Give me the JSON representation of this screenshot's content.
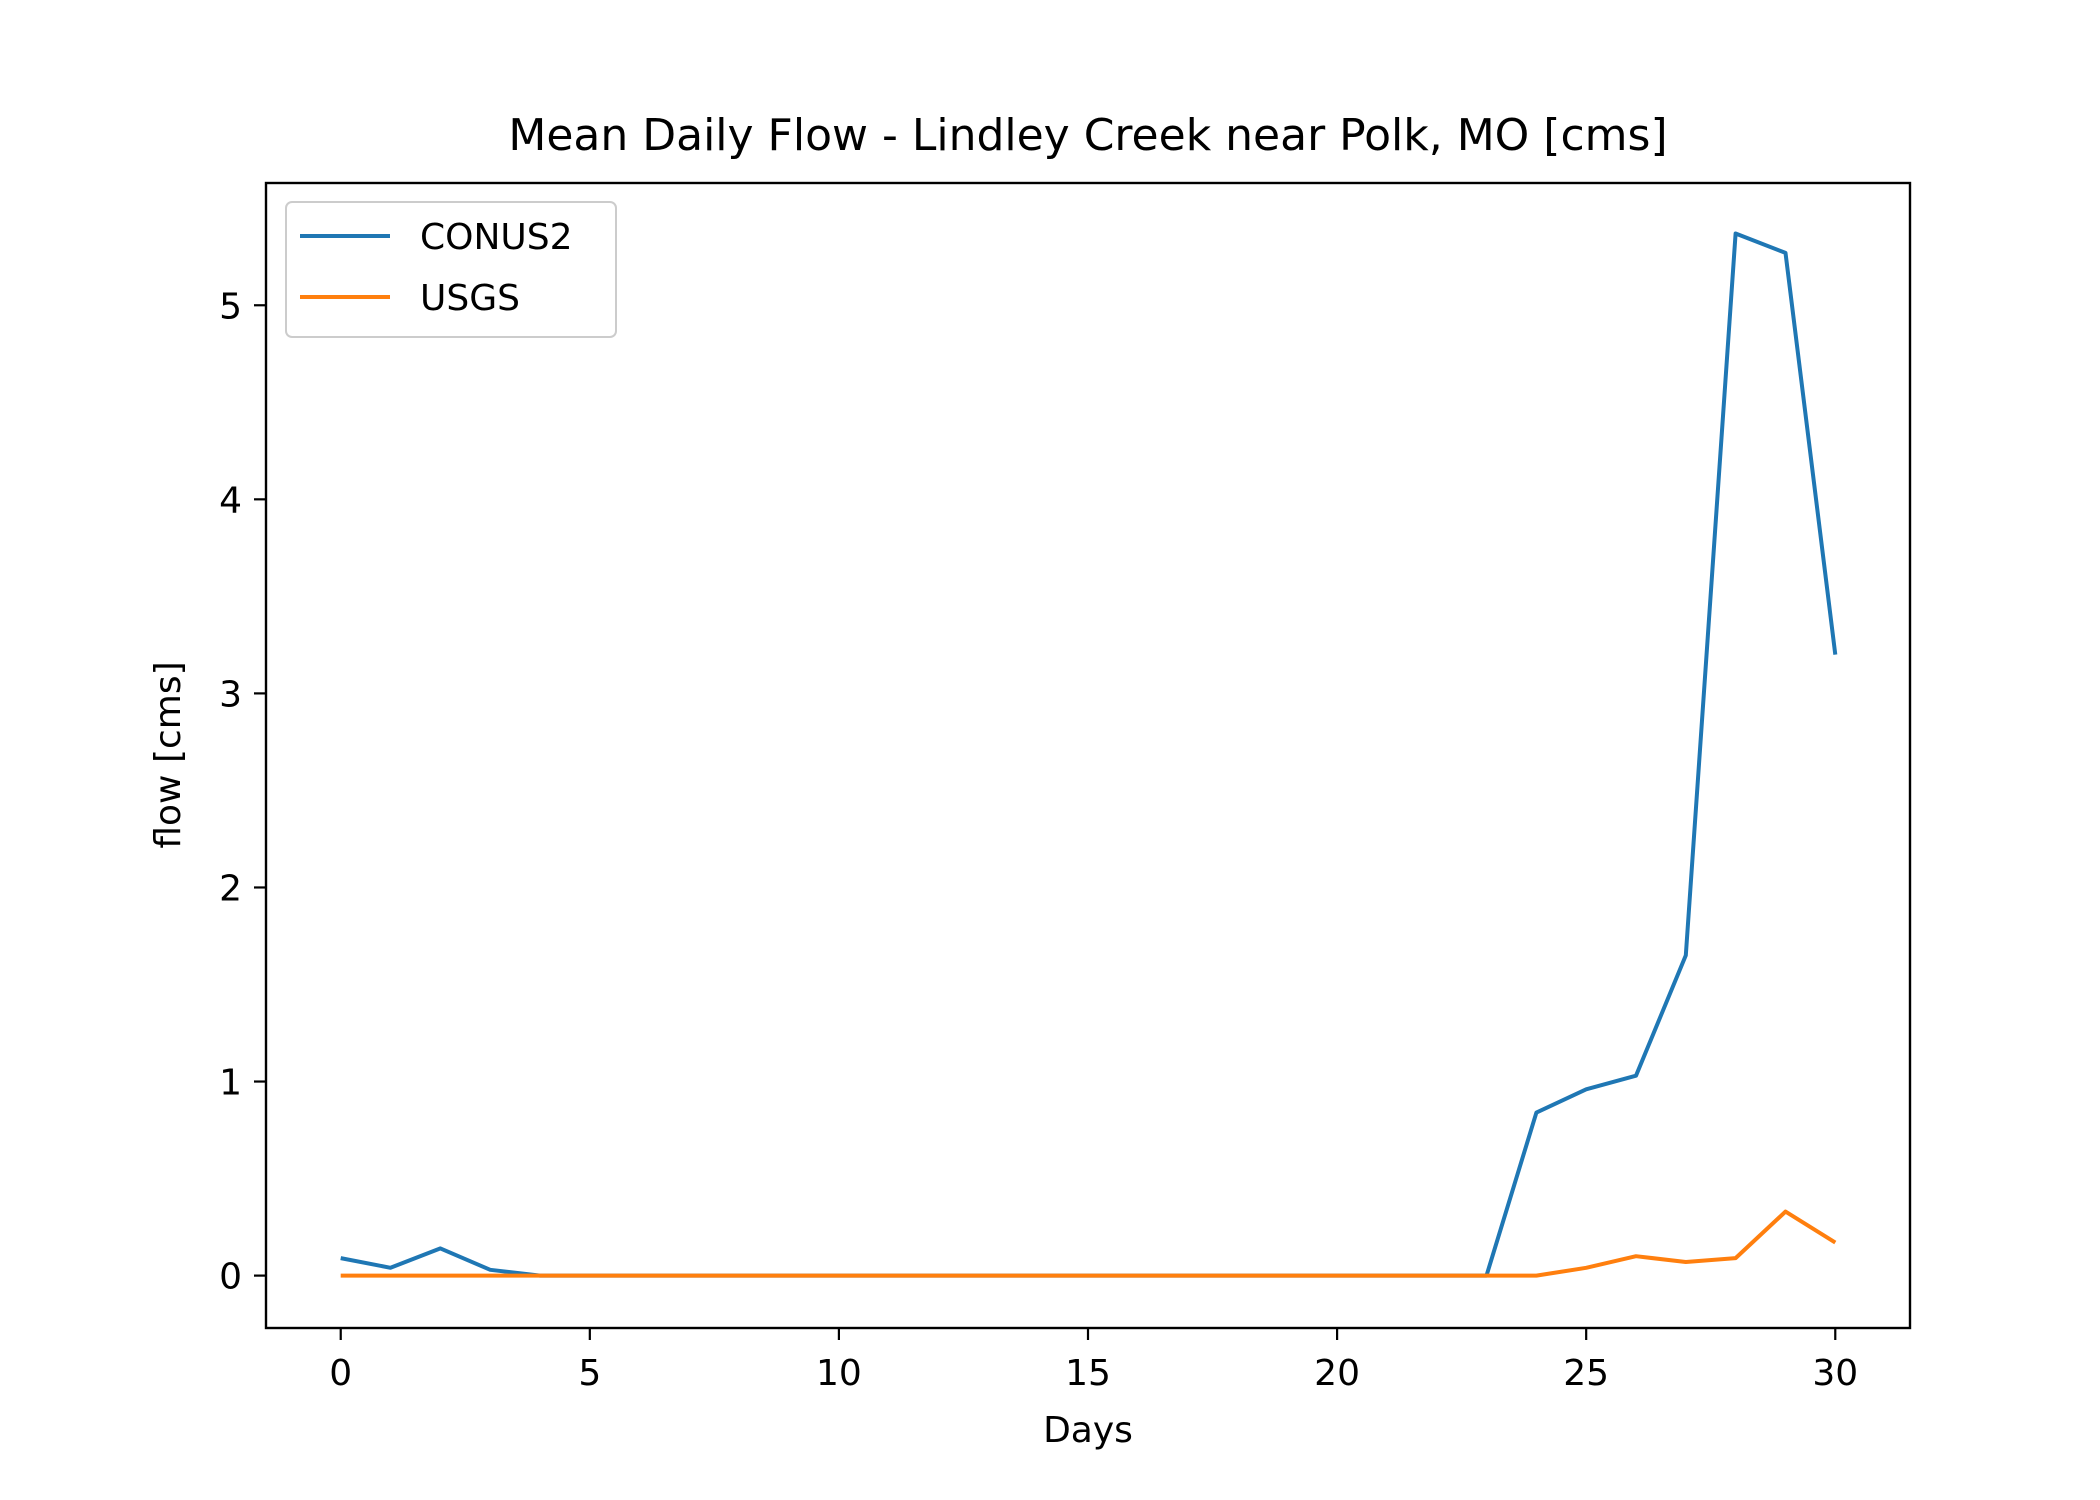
{
  "chart_data": {
    "type": "line",
    "title": "Mean Daily Flow - Lindley Creek near Polk, MO [cms]",
    "xlabel": "Days",
    "ylabel": "flow [cms]",
    "xlim": [
      -1.5,
      31.5
    ],
    "ylim": [
      -0.27,
      5.63
    ],
    "xticks": [
      0,
      5,
      10,
      15,
      20,
      25,
      30
    ],
    "yticks": [
      0,
      1,
      2,
      3,
      4,
      5
    ],
    "grid": false,
    "legend": "top-left",
    "x": [
      0,
      1,
      2,
      3,
      4,
      5,
      6,
      7,
      8,
      9,
      10,
      11,
      12,
      13,
      14,
      15,
      16,
      17,
      18,
      19,
      20,
      21,
      22,
      23,
      24,
      25,
      26,
      27,
      28,
      29,
      30
    ],
    "series": [
      {
        "name": "CONUS2",
        "color": "#1f77b4",
        "values": [
          0.09,
          0.04,
          0.14,
          0.03,
          0.0,
          0.0,
          0.0,
          0.0,
          0.0,
          0.0,
          0.0,
          0.0,
          0.0,
          0.0,
          0.0,
          0.0,
          0.0,
          0.0,
          0.0,
          0.0,
          0.0,
          0.0,
          0.0,
          0.0,
          0.84,
          0.96,
          1.03,
          1.65,
          5.37,
          5.27,
          3.2
        ]
      },
      {
        "name": "USGS",
        "color": "#ff7f0e",
        "values": [
          0.0,
          0.0,
          0.0,
          0.0,
          0.0,
          0.0,
          0.0,
          0.0,
          0.0,
          0.0,
          0.0,
          0.0,
          0.0,
          0.0,
          0.0,
          0.0,
          0.0,
          0.0,
          0.0,
          0.0,
          0.0,
          0.0,
          0.0,
          0.0,
          0.0,
          0.04,
          0.1,
          0.07,
          0.09,
          0.33,
          0.17
        ]
      }
    ]
  }
}
